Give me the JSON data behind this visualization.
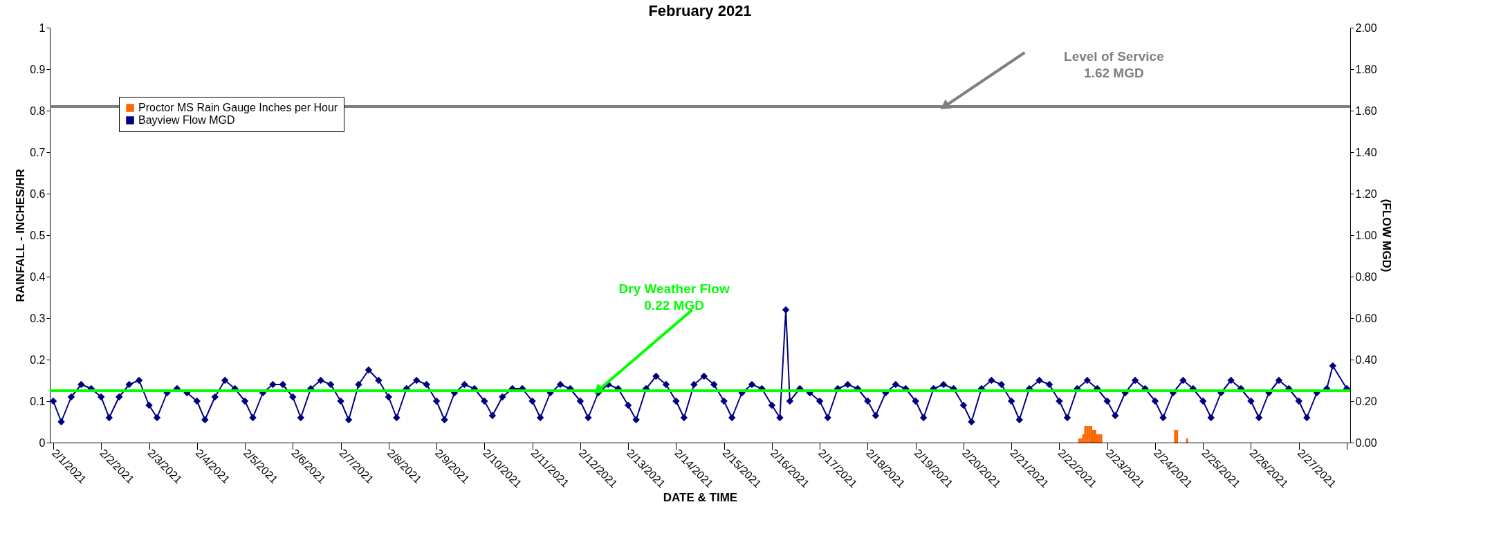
{
  "chart_data": {
    "type": "bar",
    "title": "February 2021",
    "xlabel": "DATE & TIME",
    "ylabel": "RAINFALL - INCHES/HR",
    "y2label": "(FLOW MGD)",
    "xlim": [
      "2021-02-01T00:00",
      "2021-02-28T00:00"
    ],
    "xticks": [
      {
        "value": "2021-02-01",
        "label": "2/1/2021"
      },
      {
        "value": "2021-02-02",
        "label": "2/2/2021"
      },
      {
        "value": "2021-02-03",
        "label": "2/3/2021"
      },
      {
        "value": "2021-02-04",
        "label": "2/4/2021"
      },
      {
        "value": "2021-02-05",
        "label": "2/5/2021"
      },
      {
        "value": "2021-02-06",
        "label": "2/6/2021"
      },
      {
        "value": "2021-02-07",
        "label": "2/7/2021"
      },
      {
        "value": "2021-02-08",
        "label": "2/8/2021"
      },
      {
        "value": "2021-02-09",
        "label": "2/9/2021"
      },
      {
        "value": "2021-02-10",
        "label": "2/10/2021"
      },
      {
        "value": "2021-02-11",
        "label": "2/11/2021"
      },
      {
        "value": "2021-02-12",
        "label": "2/12/2021"
      },
      {
        "value": "2021-02-13",
        "label": "2/13/2021"
      },
      {
        "value": "2021-02-14",
        "label": "2/14/2021"
      },
      {
        "value": "2021-02-15",
        "label": "2/15/2021"
      },
      {
        "value": "2021-02-16",
        "label": "2/16/2021"
      },
      {
        "value": "2021-02-17",
        "label": "2/17/2021"
      },
      {
        "value": "2021-02-18",
        "label": "2/18/2021"
      },
      {
        "value": "2021-02-19",
        "label": "2/19/2021"
      },
      {
        "value": "2021-02-20",
        "label": "2/20/2021"
      },
      {
        "value": "2021-02-21",
        "label": "2/21/2021"
      },
      {
        "value": "2021-02-22",
        "label": "2/22/2021"
      },
      {
        "value": "2021-02-23",
        "label": "2/23/2021"
      },
      {
        "value": "2021-02-24",
        "label": "2/24/2021"
      },
      {
        "value": "2021-02-25",
        "label": "2/25/2021"
      },
      {
        "value": "2021-02-26",
        "label": "2/26/2021"
      },
      {
        "value": "2021-02-27",
        "label": "2/27/2021"
      },
      {
        "value": "2021-02-28",
        "label": null
      }
    ],
    "ylim": [
      0,
      1
    ],
    "yticks": [
      0,
      0.1,
      0.2,
      0.3,
      0.4,
      0.5,
      0.6,
      0.7,
      0.8,
      0.9,
      1
    ],
    "y2lim": [
      0,
      2
    ],
    "y2ticks": [
      {
        "value": 0,
        "label": "0.00"
      },
      {
        "value": 0.2,
        "label": "0.20"
      },
      {
        "value": 0.4,
        "label": "0.40"
      },
      {
        "value": 0.6,
        "label": "0.60"
      },
      {
        "value": 0.8,
        "label": "0.80"
      },
      {
        "value": 1,
        "label": "1.00"
      },
      {
        "value": 1.2,
        "label": "1.20"
      },
      {
        "value": 1.4,
        "label": "1.40"
      },
      {
        "value": 1.6,
        "label": "1.60"
      },
      {
        "value": 1.8,
        "label": "1.80"
      },
      {
        "value": 2,
        "label": "2.00"
      }
    ],
    "legend": "top left",
    "marker": "diamond",
    "line_style": "solid",
    "series": [
      {
        "name": "Proctor MS Rain Gauge Inches per Hour",
        "color": "#ff6600",
        "x": [
          "2021-02-22T10:00",
          "2021-02-22T11:00",
          "2021-02-22T12:00",
          "2021-02-22T13:00",
          "2021-02-22T14:00",
          "2021-02-22T15:00",
          "2021-02-22T16:00",
          "2021-02-22T17:00",
          "2021-02-22T18:00",
          "2021-02-22T19:00",
          "2021-02-22T20:00",
          "2021-02-22T21:00",
          "2021-02-24T10:00",
          "2021-02-24T11:00",
          "2021-02-24T16:00"
        ],
        "values": [
          0.01,
          0.01,
          0.02,
          0.04,
          0.04,
          0.04,
          0.04,
          0.03,
          0.03,
          0.02,
          0.02,
          0.02,
          0.03,
          0.03,
          0.01
        ]
      },
      {
        "name": "Bayview Flow MGD",
        "type": "line",
        "axis": "y2",
        "color": "#000080",
        "x": [
          "2021-02-01T00:00",
          "2021-02-01T04:00",
          "2021-02-01T09:00",
          "2021-02-01T14:00",
          "2021-02-01T19:00",
          "2021-02-02T00:00",
          "2021-02-02T04:00",
          "2021-02-02T09:00",
          "2021-02-02T14:00",
          "2021-02-02T19:00",
          "2021-02-03T00:00",
          "2021-02-03T04:00",
          "2021-02-03T09:00",
          "2021-02-03T14:00",
          "2021-02-03T19:00",
          "2021-02-04T00:00",
          "2021-02-04T04:00",
          "2021-02-04T09:00",
          "2021-02-04T14:00",
          "2021-02-04T19:00",
          "2021-02-05T00:00",
          "2021-02-05T04:00",
          "2021-02-05T09:00",
          "2021-02-05T14:00",
          "2021-02-05T19:00",
          "2021-02-06T00:00",
          "2021-02-06T04:00",
          "2021-02-06T09:00",
          "2021-02-06T14:00",
          "2021-02-06T19:00",
          "2021-02-07T00:00",
          "2021-02-07T04:00",
          "2021-02-07T09:00",
          "2021-02-07T14:00",
          "2021-02-07T19:00",
          "2021-02-08T00:00",
          "2021-02-08T04:00",
          "2021-02-08T09:00",
          "2021-02-08T14:00",
          "2021-02-08T19:00",
          "2021-02-09T00:00",
          "2021-02-09T04:00",
          "2021-02-09T09:00",
          "2021-02-09T14:00",
          "2021-02-09T19:00",
          "2021-02-10T00:00",
          "2021-02-10T04:00",
          "2021-02-10T09:00",
          "2021-02-10T14:00",
          "2021-02-10T19:00",
          "2021-02-11T00:00",
          "2021-02-11T04:00",
          "2021-02-11T09:00",
          "2021-02-11T14:00",
          "2021-02-11T19:00",
          "2021-02-12T00:00",
          "2021-02-12T04:00",
          "2021-02-12T09:00",
          "2021-02-12T14:00",
          "2021-02-12T19:00",
          "2021-02-13T00:00",
          "2021-02-13T04:00",
          "2021-02-13T09:00",
          "2021-02-13T14:00",
          "2021-02-13T19:00",
          "2021-02-14T00:00",
          "2021-02-14T04:00",
          "2021-02-14T09:00",
          "2021-02-14T14:00",
          "2021-02-14T19:00",
          "2021-02-15T00:00",
          "2021-02-15T04:00",
          "2021-02-15T09:00",
          "2021-02-15T14:00",
          "2021-02-15T19:00",
          "2021-02-16T00:00",
          "2021-02-16T04:00",
          "2021-02-16T07:00",
          "2021-02-16T09:00",
          "2021-02-16T14:00",
          "2021-02-16T19:00",
          "2021-02-17T00:00",
          "2021-02-17T04:00",
          "2021-02-17T09:00",
          "2021-02-17T14:00",
          "2021-02-17T19:00",
          "2021-02-18T00:00",
          "2021-02-18T04:00",
          "2021-02-18T09:00",
          "2021-02-18T14:00",
          "2021-02-18T19:00",
          "2021-02-19T00:00",
          "2021-02-19T04:00",
          "2021-02-19T09:00",
          "2021-02-19T14:00",
          "2021-02-19T19:00",
          "2021-02-20T00:00",
          "2021-02-20T04:00",
          "2021-02-20T09:00",
          "2021-02-20T14:00",
          "2021-02-20T19:00",
          "2021-02-21T00:00",
          "2021-02-21T04:00",
          "2021-02-21T09:00",
          "2021-02-21T14:00",
          "2021-02-21T19:00",
          "2021-02-22T00:00",
          "2021-02-22T04:00",
          "2021-02-22T09:00",
          "2021-02-22T14:00",
          "2021-02-22T19:00",
          "2021-02-23T00:00",
          "2021-02-23T04:00",
          "2021-02-23T09:00",
          "2021-02-23T14:00",
          "2021-02-23T19:00",
          "2021-02-24T00:00",
          "2021-02-24T04:00",
          "2021-02-24T09:00",
          "2021-02-24T14:00",
          "2021-02-24T19:00",
          "2021-02-25T00:00",
          "2021-02-25T04:00",
          "2021-02-25T09:00",
          "2021-02-25T14:00",
          "2021-02-25T19:00",
          "2021-02-26T00:00",
          "2021-02-26T04:00",
          "2021-02-26T09:00",
          "2021-02-26T14:00",
          "2021-02-26T19:00",
          "2021-02-27T00:00",
          "2021-02-27T04:00",
          "2021-02-27T09:00",
          "2021-02-27T14:00",
          "2021-02-27T17:00",
          "2021-02-28T00:00"
        ],
        "values": [
          0.2,
          0.1,
          0.22,
          0.28,
          0.26,
          0.22,
          0.12,
          0.22,
          0.28,
          0.3,
          0.18,
          0.12,
          0.24,
          0.26,
          0.24,
          0.2,
          0.11,
          0.22,
          0.3,
          0.26,
          0.2,
          0.12,
          0.24,
          0.28,
          0.28,
          0.22,
          0.12,
          0.26,
          0.3,
          0.28,
          0.2,
          0.11,
          0.28,
          0.35,
          0.3,
          0.22,
          0.12,
          0.26,
          0.3,
          0.28,
          0.2,
          0.11,
          0.24,
          0.28,
          0.26,
          0.2,
          0.13,
          0.22,
          0.26,
          0.26,
          0.2,
          0.12,
          0.24,
          0.28,
          0.26,
          0.2,
          0.12,
          0.24,
          0.28,
          0.26,
          0.18,
          0.11,
          0.26,
          0.32,
          0.28,
          0.2,
          0.12,
          0.28,
          0.32,
          0.28,
          0.2,
          0.12,
          0.24,
          0.28,
          0.26,
          0.18,
          0.12,
          0.64,
          0.2,
          0.26,
          0.24,
          0.2,
          0.12,
          0.26,
          0.28,
          0.26,
          0.2,
          0.13,
          0.24,
          0.28,
          0.26,
          0.2,
          0.12,
          0.26,
          0.28,
          0.26,
          0.18,
          0.1,
          0.26,
          0.3,
          0.28,
          0.2,
          0.11,
          0.26,
          0.3,
          0.28,
          0.2,
          0.12,
          0.26,
          0.3,
          0.26,
          0.2,
          0.13,
          0.24,
          0.3,
          0.26,
          0.2,
          0.12,
          0.24,
          0.3,
          0.26,
          0.2,
          0.12,
          0.24,
          0.3,
          0.26,
          0.2,
          0.12,
          0.24,
          0.3,
          0.26,
          0.2,
          0.12,
          0.24,
          0.26,
          0.37,
          0.26
        ]
      }
    ],
    "ref_lines": [
      {
        "axis": "y2",
        "value": 1.62,
        "label": "Level of Service\n1.62 MGD",
        "color": "#808080"
      },
      {
        "axis": "y2",
        "value": 0.25,
        "label": "Dry Weather Flow\n0.22 MGD",
        "color": "#00ff00"
      }
    ]
  }
}
